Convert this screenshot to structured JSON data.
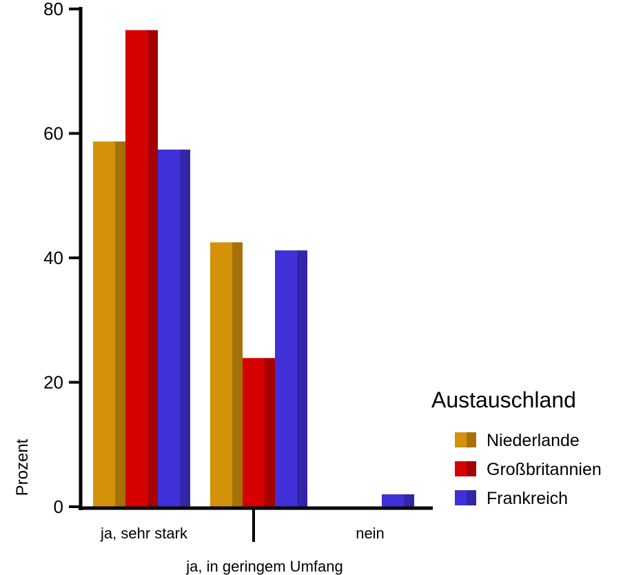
{
  "chart_data": {
    "type": "bar",
    "categories": [
      "ja, sehr stark",
      "ja, in geringem Umfang",
      "nein"
    ],
    "series": [
      {
        "name": "Niederlande",
        "values": [
          58.7,
          42.5,
          0
        ],
        "color": "#D4920A"
      },
      {
        "name": "Großbritannien",
        "values": [
          76.6,
          23.9,
          0
        ],
        "color": "#D60000"
      },
      {
        "name": "Frankreich",
        "values": [
          57.4,
          41.2,
          2.0
        ],
        "color": "#4030D8"
      }
    ],
    "ylabel": "Prozent",
    "xlabel": "",
    "ylim": [
      0,
      80
    ],
    "yticks": [
      0,
      20,
      40,
      60,
      80
    ],
    "legend_title": "Austauschland",
    "legend_position": "right",
    "grid": false
  }
}
